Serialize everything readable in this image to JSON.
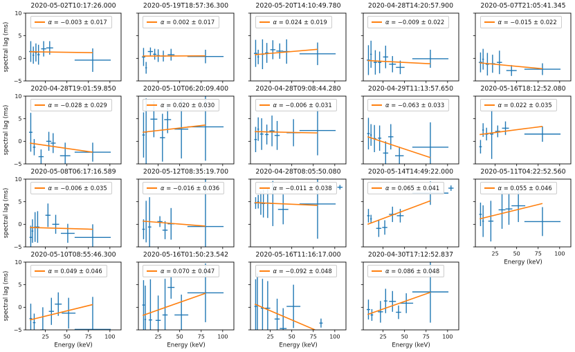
{
  "figure": {
    "background": "#ffffff",
    "grid_rows": 4,
    "grid_cols": 5,
    "empty_cells": [
      [
        3,
        4
      ]
    ]
  },
  "chart_data": {
    "type": "scatter",
    "subtype": "errorbar-grid-with-linear-fits",
    "axes": {
      "xlabel": "Energy (keV)",
      "ylabel": "spectral lag (ms)",
      "xlim": [
        2,
        113
      ],
      "ylim": [
        -5,
        10
      ],
      "xticks": [
        25,
        50,
        75,
        100
      ],
      "yticks": [
        -5,
        0,
        5,
        10
      ]
    },
    "colors": {
      "data": "#1f77b4",
      "fit": "#ff7f0e",
      "axis": "#000000",
      "text": "#111111",
      "legend_border": "#cccccc"
    },
    "subplots": [
      {
        "title": "2020-05-02T10:17:26.000",
        "legend": "α = −0.003 ± 0.017",
        "row": 0,
        "col": 0,
        "show_x": false,
        "fit": [
          7,
          1.45,
          80,
          1.25
        ],
        "points": [
          [
            8,
            1.5,
            2,
            2.3
          ],
          [
            11,
            0.7,
            1,
            1.9
          ],
          [
            14,
            1.3,
            1.5,
            2.0
          ],
          [
            17,
            0.8,
            1.5,
            2.2
          ],
          [
            23,
            2.1,
            3,
            1.7
          ],
          [
            30,
            2.3,
            4,
            1.5
          ],
          [
            80,
            -0.4,
            21,
            2.6
          ]
        ]
      },
      {
        "title": "2020-05-19T18:57:36.300",
        "legend": "α = 0.002 ± 0.017",
        "row": 0,
        "col": 1,
        "show_x": false,
        "fit": [
          7,
          0.5,
          80,
          0.55
        ],
        "points": [
          [
            8,
            0.3,
            2,
            2.0
          ],
          [
            11,
            -2.1,
            1,
            1.3
          ],
          [
            16,
            1.5,
            3,
            0.9
          ],
          [
            21,
            0.9,
            2,
            1.2
          ],
          [
            25,
            0.6,
            2,
            1.4
          ],
          [
            31,
            0.5,
            3,
            1.2
          ],
          [
            40,
            0.8,
            4,
            1.3
          ],
          [
            80,
            0.4,
            21,
            1.5
          ]
        ]
      },
      {
        "title": "2020-05-20T14:10:49.780",
        "legend": "α = 0.024 ± 0.019",
        "row": 0,
        "col": 2,
        "show_x": false,
        "fit": [
          7,
          0.8,
          80,
          2.0
        ],
        "points": [
          [
            8,
            1.1,
            2,
            3.0
          ],
          [
            11,
            0.3,
            1,
            1.6
          ],
          [
            16,
            0.9,
            2,
            3.3
          ],
          [
            21,
            1.2,
            2,
            2.2
          ],
          [
            28,
            1.9,
            3,
            2.1
          ],
          [
            36,
            1.6,
            4,
            1.7
          ],
          [
            44,
            1.5,
            4,
            2.7
          ],
          [
            80,
            1.0,
            21,
            2.5
          ]
        ]
      },
      {
        "title": "2020-04-28T14:20:57.900",
        "legend": "α = −0.009 ± 0.022",
        "row": 0,
        "col": 3,
        "show_x": false,
        "fit": [
          7,
          -0.5,
          80,
          -1.2
        ],
        "points": [
          [
            8,
            -0.4,
            2,
            3.3
          ],
          [
            11,
            0.9,
            1,
            3.0
          ],
          [
            16,
            -0.9,
            2,
            2.7
          ],
          [
            21,
            -0.9,
            2,
            2.4
          ],
          [
            28,
            0.3,
            3,
            2.5
          ],
          [
            36,
            -1.3,
            4,
            1.8
          ],
          [
            45,
            -2.0,
            5,
            1.5
          ],
          [
            80,
            -0.1,
            21,
            2.0
          ]
        ]
      },
      {
        "title": "2020-05-07T21:05:41.345",
        "legend": "α = −0.015 ± 0.022",
        "row": 0,
        "col": 4,
        "show_x": false,
        "fit": [
          7,
          -1.0,
          80,
          -2.3
        ],
        "points": [
          [
            8,
            -0.9,
            2,
            2.2
          ],
          [
            11,
            -0.2,
            1,
            2.3
          ],
          [
            16,
            -1.3,
            2,
            2.5
          ],
          [
            22,
            -1.2,
            3,
            2.0
          ],
          [
            30,
            -0.9,
            3,
            2.6
          ],
          [
            44,
            -2.7,
            6,
            1.2
          ],
          [
            80,
            -2.4,
            21,
            1.3
          ]
        ]
      },
      {
        "title": "2020-04-28T19:01:59.850",
        "legend": "α = −0.028 ± 0.029",
        "row": 1,
        "col": 0,
        "show_x": false,
        "fit": [
          7,
          -0.4,
          80,
          -2.4
        ],
        "points": [
          [
            8,
            2.0,
            2,
            4.3
          ],
          [
            12,
            -1.3,
            1.5,
            1.8
          ],
          [
            20,
            -3.4,
            3,
            1.6
          ],
          [
            29,
            0.0,
            3,
            2.1
          ],
          [
            34,
            -0.4,
            3,
            2.2
          ],
          [
            48,
            -3.2,
            6,
            2.9
          ],
          [
            80,
            -2.4,
            21,
            2.1
          ]
        ]
      },
      {
        "title": "2020-05-10T06:20:09.400",
        "legend": "α = 0.020 ± 0.030",
        "row": 1,
        "col": 1,
        "show_x": false,
        "fit": [
          7,
          2.0,
          80,
          3.6
        ],
        "points": [
          [
            8,
            1.4,
            1.5,
            5.0
          ],
          [
            11,
            2.0,
            1,
            7.5
          ],
          [
            20,
            4.9,
            4,
            4.0
          ],
          [
            30,
            0.8,
            3,
            5.3
          ],
          [
            36,
            4.8,
            4,
            3.0
          ],
          [
            52,
            2.7,
            8,
            6.5
          ],
          [
            80,
            3.2,
            21,
            7.5
          ]
        ]
      },
      {
        "title": "2020-04-28T09:08:44.280",
        "legend": "α = −0.006 ± 0.031",
        "row": 1,
        "col": 2,
        "show_x": false,
        "fit": [
          7,
          2.15,
          80,
          1.85
        ],
        "points": [
          [
            8,
            0.4,
            1.5,
            2.8
          ],
          [
            11,
            2.7,
            1,
            2.6
          ],
          [
            15,
            1.6,
            2,
            3.5
          ],
          [
            21,
            1.5,
            2,
            2.2
          ],
          [
            27,
            2.3,
            3,
            3.4
          ],
          [
            33,
            1.3,
            3,
            3.2
          ],
          [
            52,
            1.9,
            8,
            3.0
          ],
          [
            80,
            2.4,
            21,
            5.5
          ]
        ]
      },
      {
        "title": "2020-04-29T11:13:57.650",
        "legend": "α = −0.063 ± 0.033",
        "row": 1,
        "col": 3,
        "show_x": false,
        "fit": [
          7,
          1.0,
          80,
          -3.6
        ],
        "points": [
          [
            8,
            1.7,
            1.5,
            3.5
          ],
          [
            11,
            1.4,
            1,
            2.4
          ],
          [
            15,
            0.6,
            2,
            3.0
          ],
          [
            21,
            0.7,
            2,
            2.8
          ],
          [
            28,
            -2.6,
            3,
            2.6
          ],
          [
            34,
            1.0,
            3,
            2.8
          ],
          [
            44,
            -3.2,
            5,
            2.0
          ],
          [
            80,
            -1.3,
            21,
            5.5
          ]
        ]
      },
      {
        "title": "2020-05-16T18:12:52.080",
        "legend": "α = 0.022 ± 0.035",
        "row": 1,
        "col": 4,
        "show_x": false,
        "fit": [
          7,
          1.5,
          80,
          3.3
        ],
        "points": [
          [
            8,
            -1.2,
            1.5,
            1.5
          ],
          [
            11,
            2.5,
            1,
            1.5
          ],
          [
            15,
            1.6,
            2,
            1.4
          ],
          [
            21,
            1.6,
            2,
            5.5
          ],
          [
            28,
            2.2,
            3,
            1.3
          ],
          [
            37,
            2.9,
            4,
            1.5
          ],
          [
            80,
            1.6,
            21,
            1.7
          ]
        ]
      },
      {
        "title": "2020-05-08T06:17:16.589",
        "legend": "α = −0.006 ± 0.035",
        "row": 2,
        "col": 0,
        "show_x": false,
        "fit": [
          7,
          -0.7,
          80,
          -1.1
        ],
        "points": [
          [
            8,
            -2.9,
            1.5,
            2.6
          ],
          [
            10,
            -1.5,
            1,
            2.6
          ],
          [
            13,
            -0.6,
            1,
            3.3
          ],
          [
            16,
            -0.6,
            2,
            3.5
          ],
          [
            28,
            2.0,
            3,
            2.6
          ],
          [
            37,
            0.0,
            4,
            2.1
          ],
          [
            51,
            -2.0,
            8,
            2.1
          ],
          [
            80,
            -2.9,
            21,
            2.9
          ]
        ]
      },
      {
        "title": "2020-05-12T08:35:19.700",
        "legend": "α = −0.016 ± 0.036",
        "row": 2,
        "col": 1,
        "show_x": false,
        "fit": [
          7,
          0.7,
          80,
          -0.4
        ],
        "points": [
          [
            8,
            -1.1,
            1.5,
            2.2
          ],
          [
            11,
            0.6,
            1,
            4.6
          ],
          [
            15,
            -0.6,
            2,
            6.6
          ],
          [
            27,
            0.6,
            3,
            1.2
          ],
          [
            33,
            -1.3,
            3,
            2.0
          ],
          [
            40,
            0.1,
            4,
            3.5
          ],
          [
            80,
            -0.5,
            21,
            11
          ]
        ]
      },
      {
        "title": "2020-04-28T08:05:50.080",
        "legend": "α = −0.011 ± 0.038",
        "row": 2,
        "col": 2,
        "show_x": false,
        "fit": [
          7,
          4.8,
          80,
          4.2
        ],
        "points": [
          [
            8,
            4.7,
            1.5,
            1.3
          ],
          [
            11,
            5.0,
            1,
            1.5
          ],
          [
            14,
            4.7,
            1.5,
            2.6
          ],
          [
            17,
            4.6,
            2,
            3.1
          ],
          [
            22,
            4.7,
            3,
            3.3
          ],
          [
            28,
            4.6,
            3,
            5.0
          ],
          [
            40,
            3.3,
            6,
            3.3
          ],
          [
            80,
            4.5,
            21,
            7.7
          ],
          [
            106,
            8.2,
            3,
            0.5
          ]
        ]
      },
      {
        "title": "2020-05-14T14:49:22.000",
        "legend": "α = 0.065 ± 0.041",
        "row": 2,
        "col": 3,
        "show_x": false,
        "fit": [
          7,
          0.0,
          80,
          5.2
        ],
        "points": [
          [
            8,
            1.9,
            1.5,
            1.5
          ],
          [
            11,
            1.2,
            1,
            0.9
          ],
          [
            20,
            -0.9,
            3,
            1.9
          ],
          [
            27,
            -0.7,
            3,
            1.6
          ],
          [
            36,
            2.2,
            4,
            1.7
          ],
          [
            45,
            1.9,
            4,
            1.5
          ],
          [
            80,
            6.9,
            21,
            2.6
          ],
          [
            104,
            8.0,
            3,
            0.6
          ]
        ]
      },
      {
        "title": "2020-05-11T04:22:52.560",
        "legend": "α = 0.055 ± 0.046",
        "row": 2,
        "col": 4,
        "show_x": true,
        "fit": [
          7,
          1.2,
          80,
          4.6
        ],
        "points": [
          [
            8,
            2.2,
            1.5,
            2.6
          ],
          [
            11,
            0.7,
            1,
            3.5
          ],
          [
            20,
            0.7,
            3,
            4.5
          ],
          [
            33,
            3.2,
            4,
            4.2
          ],
          [
            41,
            3.4,
            4,
            3.5
          ],
          [
            52,
            4.1,
            8,
            3.6
          ],
          [
            80,
            0.6,
            21,
            3.2
          ]
        ]
      },
      {
        "title": "2020-05-10T08:55:46.300",
        "legend": "α = 0.049 ± 0.046",
        "row": 3,
        "col": 0,
        "show_x": true,
        "fit": [
          7,
          -2.8,
          80,
          0.6
        ],
        "points": [
          [
            8,
            -2.5,
            1.5,
            3.3
          ],
          [
            12,
            -3.4,
            1.5,
            2.0
          ],
          [
            22,
            -5.0,
            3,
            5.0
          ],
          [
            32,
            -0.9,
            3,
            3.0
          ],
          [
            40,
            0.7,
            4,
            2.6
          ],
          [
            52,
            -1.3,
            8,
            3.4
          ],
          [
            80,
            -4.9,
            21,
            7.2
          ]
        ]
      },
      {
        "title": "2020-05-16T01:50:23.542",
        "legend": "α = 0.070 ± 0.047",
        "row": 3,
        "col": 1,
        "show_x": true,
        "fit": [
          7,
          -1.8,
          80,
          3.1
        ],
        "points": [
          [
            8,
            0.5,
            1.5,
            5.5
          ],
          [
            10,
            -2.7,
            1,
            7.5
          ],
          [
            16,
            -2.8,
            2,
            9.0
          ],
          [
            25,
            -2.9,
            3,
            5.5
          ],
          [
            33,
            -1.7,
            3,
            8.0
          ],
          [
            40,
            4.4,
            4,
            2.5
          ],
          [
            52,
            -1.7,
            8,
            4.5
          ],
          [
            80,
            3.2,
            21,
            6.5
          ]
        ]
      },
      {
        "title": "2020-05-16T11:16:17.000",
        "legend": "α = −0.092 ± 0.048",
        "row": 3,
        "col": 2,
        "show_x": true,
        "fit": [
          7,
          0.7,
          77,
          -5.0
        ],
        "points": [
          [
            8,
            0.2,
            1.5,
            6.0
          ],
          [
            10,
            0.5,
            1,
            7.0
          ],
          [
            16,
            -0.2,
            2,
            6.5
          ],
          [
            22,
            -0.2,
            3,
            6.0
          ],
          [
            33,
            -2.6,
            3,
            4.5
          ],
          [
            40,
            -4.7,
            4,
            4.5
          ],
          [
            52,
            0.2,
            8,
            4.8
          ],
          [
            84,
            -3.5,
            2,
            1.0
          ]
        ]
      },
      {
        "title": "2020-04-30T17:12:52.837",
        "legend": "α = 0.086 ± 0.048",
        "row": 3,
        "col": 3,
        "show_x": true,
        "fit": [
          7,
          -1.6,
          80,
          3.3
        ],
        "points": [
          [
            8,
            -0.5,
            2,
            2.2
          ],
          [
            12,
            -1.7,
            1.5,
            1.3
          ],
          [
            22,
            -1.0,
            3,
            2.4
          ],
          [
            28,
            1.4,
            2,
            2.7
          ],
          [
            36,
            1.3,
            4,
            2.3
          ],
          [
            43,
            -1.1,
            3,
            1.5
          ],
          [
            52,
            0.9,
            8,
            2.2
          ],
          [
            80,
            3.4,
            21,
            6.8
          ]
        ]
      }
    ]
  }
}
